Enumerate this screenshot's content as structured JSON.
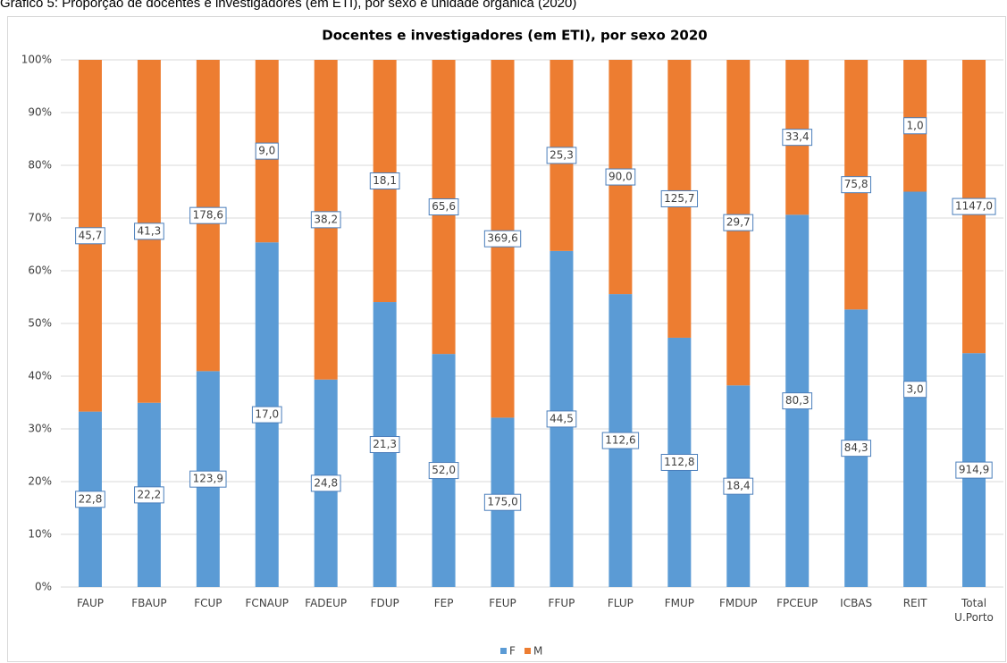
{
  "caption": "Gráfico 5: Proporção de docentes e investigadores (em ETI), por sexo e unidade orgânica (2020)",
  "chart_data": {
    "type": "bar",
    "stack": "percent",
    "title": "Docentes e investigadores (em ETI), por sexo 2020",
    "categories": [
      "FAUP",
      "FBAUP",
      "FCUP",
      "FCNAUP",
      "FADEUP",
      "FDUP",
      "FEP",
      "FEUP",
      "FFUP",
      "FLUP",
      "FMUP",
      "FMDUP",
      "FPCEUP",
      "ICBAS",
      "REIT",
      "Total U.Porto"
    ],
    "series": [
      {
        "name": "F",
        "color": "#5b9bd5",
        "values": [
          22.8,
          22.2,
          123.9,
          17.0,
          24.8,
          21.3,
          52.0,
          175.0,
          44.5,
          112.6,
          112.8,
          18.4,
          80.3,
          84.3,
          3.0,
          914.9
        ],
        "value_labels": [
          "22,8",
          "22,2",
          "123,9",
          "17,0",
          "24,8",
          "21,3",
          "52,0",
          "175,0",
          "44,5",
          "112,6",
          "112,8",
          "18,4",
          "80,3",
          "84,3",
          "3,0",
          "914,9"
        ]
      },
      {
        "name": "M",
        "color": "#ed7d31",
        "values": [
          45.7,
          41.3,
          178.6,
          9.0,
          38.2,
          18.1,
          65.6,
          369.6,
          25.3,
          90.0,
          125.7,
          29.7,
          33.4,
          75.8,
          1.0,
          1147.0
        ],
        "value_labels": [
          "45,7",
          "41,3",
          "178,6",
          "9,0",
          "38,2",
          "18,1",
          "65,6",
          "369,6",
          "25,3",
          "90,0",
          "125,7",
          "29,7",
          "33,4",
          "75,8",
          "1,0",
          "1147,0"
        ]
      }
    ],
    "ylim": [
      0,
      100
    ],
    "yticks": [
      {
        "value": 0,
        "label": "0%"
      },
      {
        "value": 10,
        "label": "10%"
      },
      {
        "value": 20,
        "label": "20%"
      },
      {
        "value": 30,
        "label": "30%"
      },
      {
        "value": 40,
        "label": "40%"
      },
      {
        "value": 50,
        "label": "50%"
      },
      {
        "value": 60,
        "label": "60%"
      },
      {
        "value": 70,
        "label": "70%"
      },
      {
        "value": 80,
        "label": "80%"
      },
      {
        "value": 90,
        "label": "90%"
      },
      {
        "value": 100,
        "label": "100%"
      }
    ],
    "grid": true,
    "legend": "bottom"
  }
}
